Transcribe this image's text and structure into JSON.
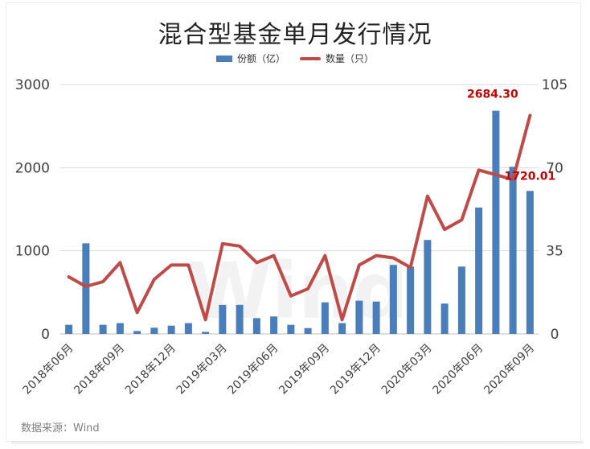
{
  "chart_data": {
    "type": "bar+line",
    "title": "混合型基金单月发行情况",
    "source": "数据来源：Wind",
    "watermark": "Wind",
    "colors": {
      "bar": "#4a7ebb",
      "line": "#be4b48",
      "annotation": "#c00000"
    },
    "legend": [
      {
        "name": "份额（亿）",
        "kind": "bar"
      },
      {
        "name": "数量（只）",
        "kind": "line"
      }
    ],
    "x_tick_labels": [
      "2018年06月",
      "2018年09月",
      "2018年12月",
      "2019年03月",
      "2019年06月",
      "2019年09月",
      "2019年12月",
      "2020年03月",
      "2020年06月",
      "2020年09月"
    ],
    "x_tick_every": 3,
    "y_left": {
      "label": "份额（亿）",
      "range": [
        0,
        3000
      ],
      "ticks": [
        0,
        1000,
        2000,
        3000
      ]
    },
    "y_right": {
      "label": "数量（只）",
      "range": [
        0,
        105
      ],
      "ticks": [
        0,
        35,
        70,
        105
      ]
    },
    "categories": [
      "2018年06月",
      "2018年07月",
      "2018年08月",
      "2018年09月",
      "2018年10月",
      "2018年11月",
      "2018年12月",
      "2019年01月",
      "2019年02月",
      "2019年03月",
      "2019年04月",
      "2019年05月",
      "2019年06月",
      "2019年07月",
      "2019年08月",
      "2019年09月",
      "2019年10月",
      "2019年11月",
      "2019年12月",
      "2020年01月",
      "2020年02月",
      "2020年03月",
      "2020年04月",
      "2020年05月",
      "2020年06月",
      "2020年07月",
      "2020年08月",
      "2020年09月"
    ],
    "series": [
      {
        "name": "份额（亿）",
        "type": "bar",
        "axis": "left",
        "values": [
          110,
          1090,
          110,
          130,
          35,
          75,
          100,
          130,
          25,
          350,
          350,
          190,
          210,
          110,
          70,
          380,
          130,
          400,
          390,
          830,
          810,
          1130,
          365,
          810,
          1520,
          2684.3,
          2010,
          1720.01
        ]
      },
      {
        "name": "数量（只）",
        "type": "line",
        "axis": "right",
        "values": [
          24,
          20,
          22,
          30,
          9,
          23,
          29,
          29,
          6,
          38,
          37,
          30,
          33,
          16,
          19,
          33,
          6,
          29,
          33,
          32,
          28,
          58,
          44,
          48,
          69,
          67,
          65,
          92
        ]
      }
    ],
    "annotations": [
      {
        "text": "2684.30",
        "series": "份额（亿）",
        "index": 25
      },
      {
        "text": "1720.01",
        "series": "份额（亿）",
        "index": 27
      }
    ]
  }
}
